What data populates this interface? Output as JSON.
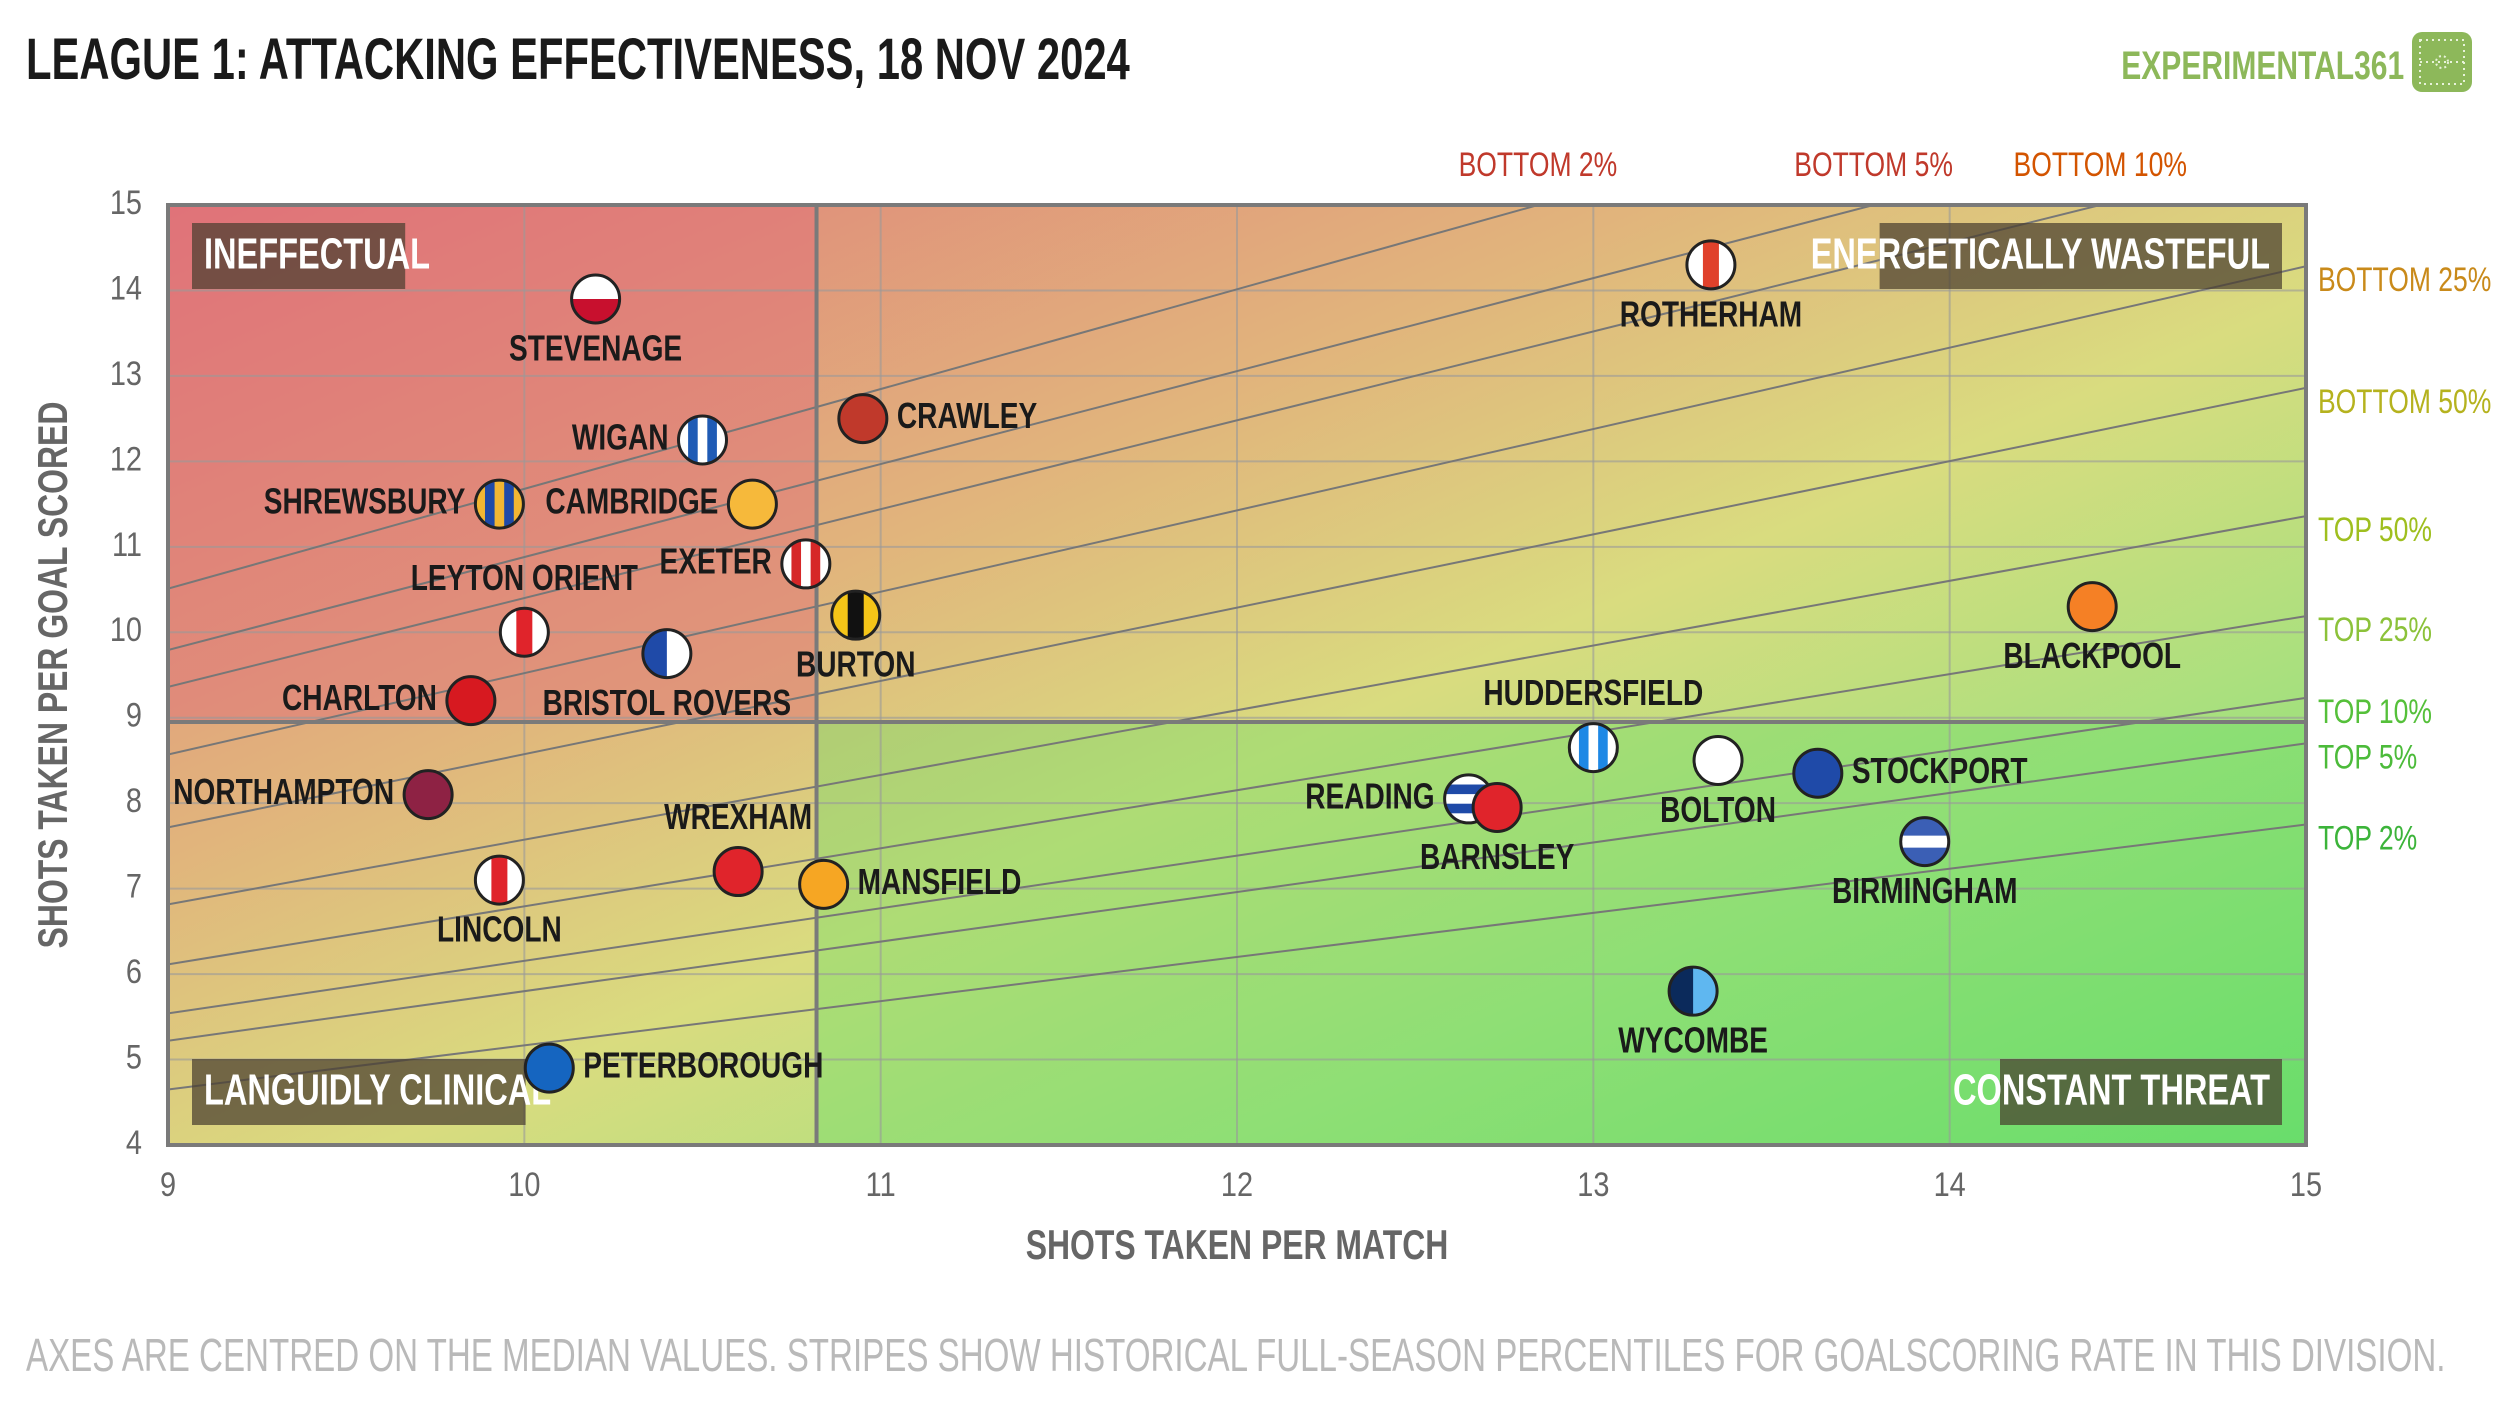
{
  "title": "LEAGUE 1: ATTACKING EFFECTIVENESS, 18 NOV 2024",
  "brand": {
    "name": "EXPERIMENTAL361",
    "logo_icon": "pitch-icon",
    "color": "#8db85a"
  },
  "footnote": "AXES ARE CENTRED ON THE MEDIAN VALUES. STRIPES SHOW HISTORICAL FULL-SEASON PERCENTILES FOR GOALSCORING RATE IN THIS DIVISION.",
  "chart_data": {
    "type": "scatter",
    "xlabel": "SHOTS TAKEN PER MATCH",
    "ylabel": "SHOTS TAKEN PER GOAL SCORED",
    "xlim": [
      9,
      15
    ],
    "ylim": [
      4,
      15
    ],
    "xticks": [
      9,
      10,
      11,
      12,
      13,
      14,
      15
    ],
    "yticks": [
      4,
      5,
      6,
      7,
      8,
      9,
      10,
      11,
      12,
      13,
      14,
      15
    ],
    "median_x": 10.82,
    "median_y": 8.95,
    "quadrants": {
      "top_left": "INEFFECTUAL",
      "top_right": "ENERGETICALLY WASTEFUL",
      "bottom_left": "LANGUIDLY CLINICAL",
      "bottom_right": "CONSTANT THREAT"
    },
    "percentile_lines": [
      {
        "label": "BOTTOM 2%",
        "goals_per_match": 0.8563,
        "color": "#c0392b"
      },
      {
        "label": "BOTTOM 5%",
        "goals_per_match": 0.9191,
        "color": "#c0392b"
      },
      {
        "label": "BOTTOM 10%",
        "goals_per_match": 0.9615,
        "color": "#d35400"
      },
      {
        "label": "BOTTOM 25%",
        "goals_per_match": 1.0502,
        "color": "#c98a1a"
      },
      {
        "label": "BOTTOM 50%",
        "goals_per_match": 1.1664,
        "color": "#b5b21e"
      },
      {
        "label": "TOP 50%",
        "goals_per_match": 1.3205,
        "color": "#9fbf1f"
      },
      {
        "label": "TOP 25%",
        "goals_per_match": 1.4721,
        "color": "#8cc23a"
      },
      {
        "label": "TOP 10%",
        "goals_per_match": 1.6247,
        "color": "#55c03a"
      },
      {
        "label": "TOP 5%",
        "goals_per_match": 1.7241,
        "color": "#4cbb3a"
      },
      {
        "label": "TOP 2%",
        "goals_per_match": 1.9355,
        "color": "#3cb43a"
      }
    ],
    "teams": [
      {
        "name": "STEVENAGE",
        "x": 10.2,
        "y": 13.9,
        "c1": "#ffffff",
        "c2": "#c8102e",
        "pattern": "hsplit",
        "label_pos": "below"
      },
      {
        "name": "CRAWLEY",
        "x": 10.95,
        "y": 12.5,
        "c1": "#c0392b",
        "c2": "#c0392b",
        "pattern": "solid",
        "label_pos": "right"
      },
      {
        "name": "WIGAN",
        "x": 10.5,
        "y": 12.25,
        "c1": "#ffffff",
        "c2": "#1f5bb5",
        "pattern": "vstripes",
        "label_pos": "left"
      },
      {
        "name": "SHREWSBURY",
        "x": 9.93,
        "y": 11.5,
        "c1": "#f2b632",
        "c2": "#1f4aa8",
        "pattern": "vstripes",
        "label_pos": "left"
      },
      {
        "name": "CAMBRIDGE",
        "x": 10.64,
        "y": 11.5,
        "c1": "#f6b93b",
        "c2": "#f6b93b",
        "pattern": "solid",
        "label_pos": "left"
      },
      {
        "name": "EXETER",
        "x": 10.79,
        "y": 10.8,
        "c1": "#ffffff",
        "c2": "#d62728",
        "pattern": "vstripes",
        "label_pos": "left"
      },
      {
        "name": "LEYTON ORIENT",
        "x": 10.0,
        "y": 10.0,
        "c1": "#ffffff",
        "c2": "#e0242b",
        "pattern": "vcenter",
        "label_pos": "above"
      },
      {
        "name": "BURTON",
        "x": 10.93,
        "y": 10.2,
        "c1": "#f5c518",
        "c2": "#111111",
        "pattern": "vcenter",
        "label_pos": "below"
      },
      {
        "name": "BRISTOL ROVERS",
        "x": 10.4,
        "y": 9.75,
        "c1": "#1f4aa8",
        "c2": "#ffffff",
        "pattern": "vhalf",
        "label_pos": "below"
      },
      {
        "name": "CHARLTON",
        "x": 9.85,
        "y": 9.2,
        "c1": "#d71920",
        "c2": "#d71920",
        "pattern": "solid",
        "label_pos": "left"
      },
      {
        "name": "NORTHAMPTON",
        "x": 9.73,
        "y": 8.1,
        "c1": "#8e2244",
        "c2": "#8e2244",
        "pattern": "solid",
        "label_pos": "left"
      },
      {
        "name": "WREXHAM",
        "x": 10.6,
        "y": 7.2,
        "c1": "#e0242b",
        "c2": "#e0242b",
        "pattern": "solid",
        "label_pos": "above"
      },
      {
        "name": "MANSFIELD",
        "x": 10.84,
        "y": 7.05,
        "c1": "#f6a623",
        "c2": "#f6a623",
        "pattern": "solid",
        "label_pos": "right"
      },
      {
        "name": "LINCOLN",
        "x": 9.93,
        "y": 7.1,
        "c1": "#ffffff",
        "c2": "#e0242b",
        "pattern": "vcenter",
        "label_pos": "below"
      },
      {
        "name": "PETERBOROUGH",
        "x": 10.07,
        "y": 4.9,
        "c1": "#1565c0",
        "c2": "#1565c0",
        "pattern": "solid",
        "label_pos": "right"
      },
      {
        "name": "ROTHERHAM",
        "x": 13.33,
        "y": 14.3,
        "c1": "#ffffff",
        "c2": "#e0412b",
        "pattern": "vcenter",
        "label_pos": "below"
      },
      {
        "name": "BLACKPOOL",
        "x": 14.4,
        "y": 10.3,
        "c1": "#f58025",
        "c2": "#f58025",
        "pattern": "solid",
        "label_pos": "below"
      },
      {
        "name": "HUDDERSFIELD",
        "x": 13.0,
        "y": 8.65,
        "c1": "#ffffff",
        "c2": "#1e88e5",
        "pattern": "vstripes",
        "label_pos": "above"
      },
      {
        "name": "BOLTON",
        "x": 13.35,
        "y": 8.5,
        "c1": "#ffffff",
        "c2": "#ffffff",
        "pattern": "solid",
        "label_pos": "below"
      },
      {
        "name": "STOCKPORT",
        "x": 13.63,
        "y": 8.35,
        "c1": "#1f4aa8",
        "c2": "#1f4aa8",
        "pattern": "solid",
        "label_pos": "right"
      },
      {
        "name": "READING",
        "x": 12.65,
        "y": 8.05,
        "c1": "#ffffff",
        "c2": "#1f4aa8",
        "pattern": "hstripes",
        "label_pos": "left"
      },
      {
        "name": "BARNSLEY",
        "x": 12.73,
        "y": 7.95,
        "c1": "#e0242b",
        "c2": "#e0242b",
        "pattern": "solid",
        "label_pos": "below"
      },
      {
        "name": "BIRMINGHAM",
        "x": 13.93,
        "y": 7.55,
        "c1": "#3b5fb5",
        "c2": "#ffffff",
        "pattern": "hcenter",
        "label_pos": "below"
      },
      {
        "name": "WYCOMBE",
        "x": 13.28,
        "y": 5.8,
        "c1": "#0b2a5b",
        "c2": "#5fb7f0",
        "pattern": "vhalf",
        "label_pos": "below"
      }
    ]
  }
}
